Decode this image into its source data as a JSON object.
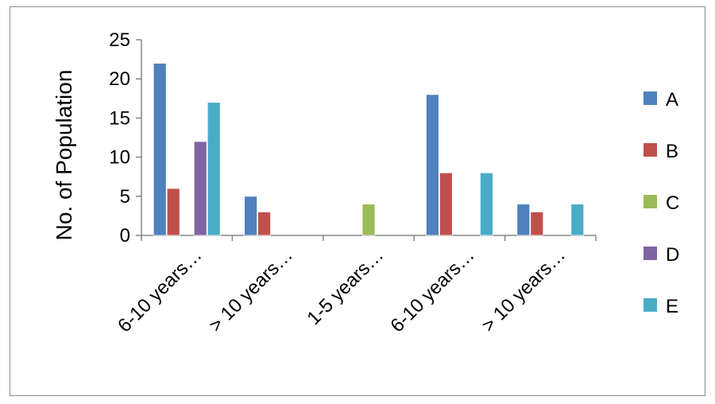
{
  "chart_data": {
    "type": "bar",
    "title": "",
    "xlabel": "",
    "ylabel": "No. of Population",
    "ylim": [
      0,
      25
    ],
    "yticks": [
      0,
      5,
      10,
      15,
      20,
      25
    ],
    "grid": false,
    "legend_position": "right",
    "categories": [
      "6-10 years…",
      "> 10 years…",
      "1-5 years…",
      "6-10 years…",
      "> 10 years…"
    ],
    "series": [
      {
        "name": "A",
        "color": "#4F81BD",
        "values": [
          22,
          5,
          0,
          18,
          4
        ]
      },
      {
        "name": "B",
        "color": "#C0504D",
        "values": [
          6,
          3,
          0,
          8,
          3
        ]
      },
      {
        "name": "C",
        "color": "#9BBB59",
        "values": [
          0,
          0,
          4,
          0,
          0
        ]
      },
      {
        "name": "D",
        "color": "#8064A2",
        "values": [
          12,
          0,
          0,
          0,
          0
        ]
      },
      {
        "name": "E",
        "color": "#4BACC6",
        "values": [
          17,
          0,
          0,
          8,
          4
        ]
      }
    ]
  }
}
